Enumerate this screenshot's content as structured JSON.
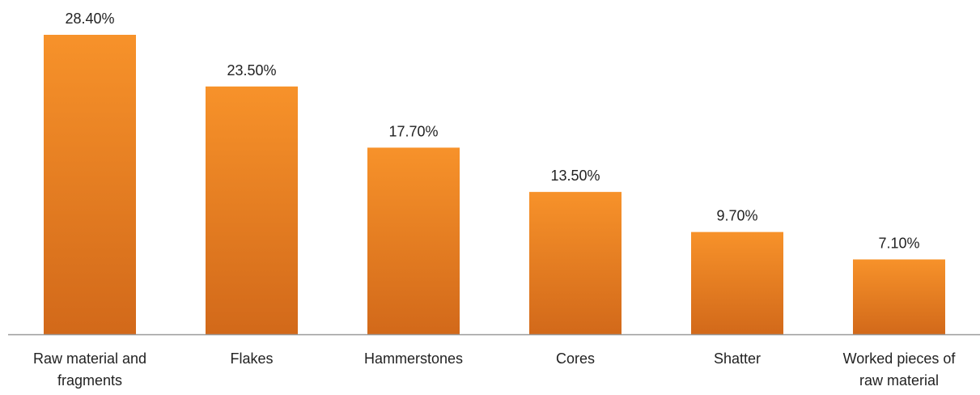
{
  "chart_data": {
    "type": "bar",
    "categories": [
      [
        "Raw material and",
        "fragments"
      ],
      [
        "Flakes"
      ],
      [
        "Hammerstones"
      ],
      [
        "Cores"
      ],
      [
        "Shatter"
      ],
      [
        "Worked pieces of",
        "raw material"
      ]
    ],
    "values": [
      28.4,
      23.5,
      17.7,
      13.5,
      9.7,
      7.1
    ],
    "value_labels": [
      "28.40%",
      "23.50%",
      "17.70%",
      "13.50%",
      "9.70%",
      "7.10%"
    ],
    "title": "",
    "xlabel": "",
    "ylabel": "",
    "ylim": [
      0,
      28.4
    ],
    "grid": false,
    "legend": "none",
    "colors": {
      "bar_top": "#f7922a",
      "bar_bottom": "#d2691a",
      "axis": "#9a9a9a",
      "text": "#222222"
    }
  }
}
